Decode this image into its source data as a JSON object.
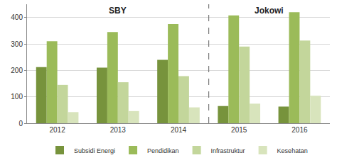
{
  "chart_data": {
    "type": "bar",
    "categories": [
      "2012",
      "2013",
      "2014",
      "2015",
      "2016"
    ],
    "series": [
      {
        "name": "Subsidi Energi",
        "color": "#77933c",
        "values": [
          212,
          210,
          240,
          65,
          63
        ]
      },
      {
        "name": "Pendidikan",
        "color": "#9bbb59",
        "values": [
          310,
          345,
          375,
          408,
          420
        ]
      },
      {
        "name": "Infrastruktur",
        "color": "#c3d69b",
        "values": [
          145,
          155,
          178,
          290,
          313
        ]
      },
      {
        "name": "Kesehatan",
        "color": "#d8e4bc",
        "values": [
          42,
          46,
          60,
          74,
          104
        ]
      }
    ],
    "annotations": [
      {
        "text": "SBY",
        "x": 1
      },
      {
        "text": "Jokowi",
        "x": 3.5
      }
    ],
    "ylim": [
      0,
      450
    ],
    "yticks": [
      0,
      100,
      200,
      300,
      400
    ],
    "grid": true,
    "legend": "bottom"
  }
}
